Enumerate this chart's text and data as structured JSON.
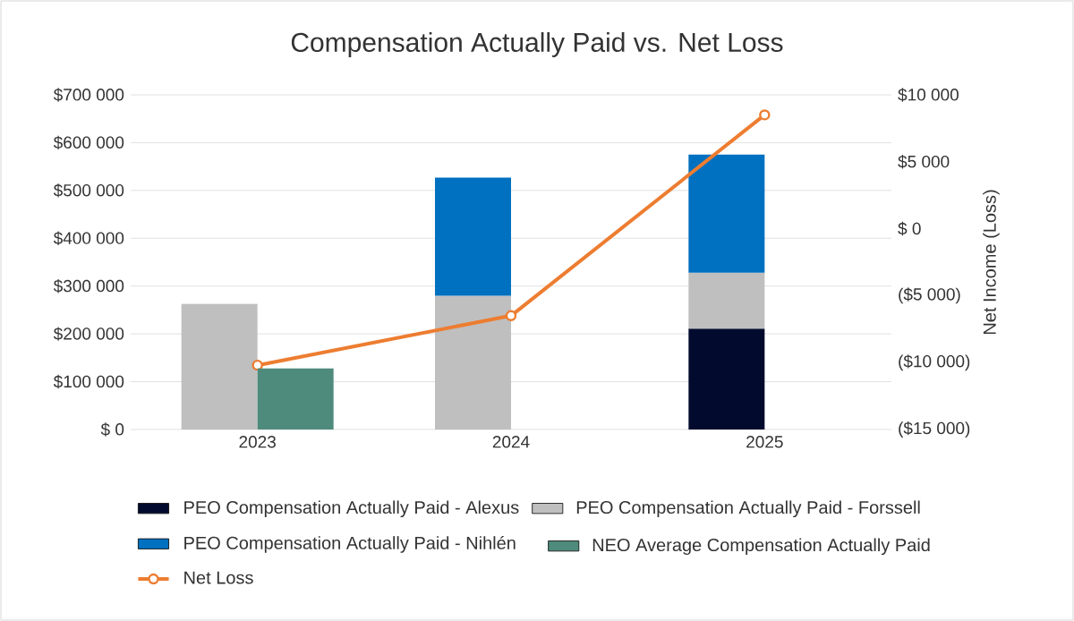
{
  "chart_data": [
    {
      "type": "bar",
      "title": "Compensation Actually Paid vs. Net Loss",
      "y2label": "Net Income (Loss)",
      "categories": [
        "2023",
        "2024",
        "2025"
      ],
      "stacked": true,
      "series": [
        {
          "name": "PEO Compensation Actually Paid - Alexus",
          "color": "#020b2e",
          "values": [
            null,
            null,
            211000
          ]
        },
        {
          "name": "PEO Compensation Actually Paid - Forssell",
          "color": "#bfbfbf",
          "values": [
            263000,
            280000,
            117000
          ]
        },
        {
          "name": "PEO Compensation Actually Paid - Nihlén",
          "color": "#0070c0",
          "values": [
            null,
            247000,
            247000
          ]
        },
        {
          "name": "Net Loss",
          "type": "line",
          "axis": "y2",
          "color": "#ed7d31",
          "marker": "circle",
          "values": [
            -10200,
            -6500,
            8500
          ]
        }
      ],
      "ylim": [
        0,
        700000
      ],
      "yticks": [
        {
          "value": 0,
          "label": "$ 0"
        },
        {
          "value": 100000,
          "label": "$100 000"
        },
        {
          "value": 200000,
          "label": "$200 000"
        },
        {
          "value": 300000,
          "label": "$300 000"
        },
        {
          "value": 400000,
          "label": "$400 000"
        },
        {
          "value": 500000,
          "label": "$500 000"
        },
        {
          "value": 600000,
          "label": "$600 000"
        },
        {
          "value": 700000,
          "label": "$700 000"
        }
      ],
      "y2lim": [
        -15000,
        10000
      ],
      "y2ticks": [
        {
          "value": -15000,
          "label": "($15 000)"
        },
        {
          "value": -10000,
          "label": "($10 000)"
        },
        {
          "value": -5000,
          "label": "($5 000)"
        },
        {
          "value": 0,
          "label": "$ 0"
        },
        {
          "value": 5000,
          "label": "$5 000"
        },
        {
          "value": 10000,
          "label": "$10 000"
        }
      ],
      "grid": "y",
      "legend": "bottom"
    },
    {
      "type": "bar",
      "categories": [
        "2023",
        "2024",
        "2025"
      ],
      "series": [
        {
          "name": "NEO Average Compensation Actually Paid",
          "color": "#4e8b7c",
          "values": [
            128000,
            null,
            null
          ]
        }
      ],
      "ylim": [
        0,
        700000
      ],
      "legend": "bottom",
      "tick_labels": false
    }
  ]
}
